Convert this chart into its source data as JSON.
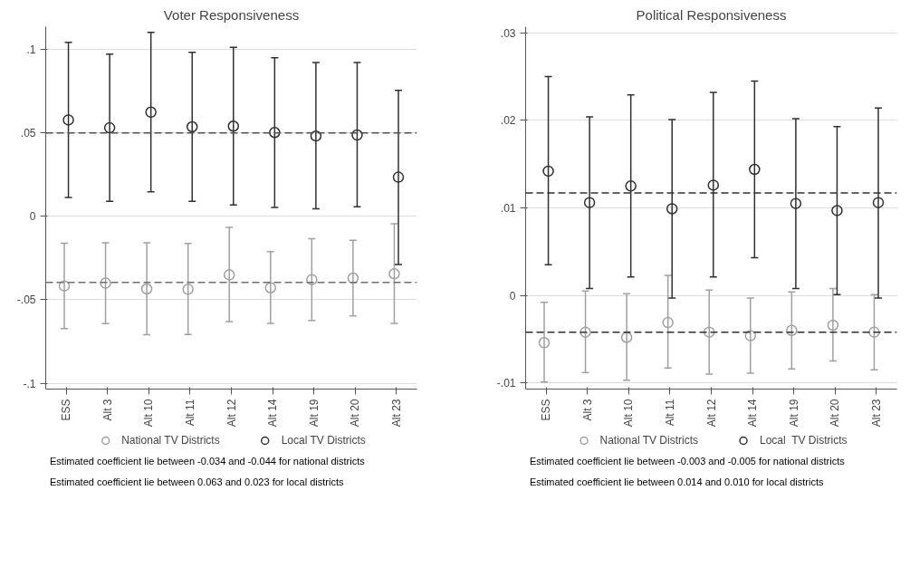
{
  "chart_data": [
    {
      "type": "scatter",
      "title": "Voter Responsiveness",
      "categories": [
        "ESS",
        "Alt 3",
        "Alt 10",
        "Alt 11",
        "Alt 12",
        "Alt 14",
        "Alt 19",
        "Alt 20",
        "Alt 23"
      ],
      "series": [
        {
          "name": "National TV Districts",
          "color": "#a0a0a0",
          "values": [
            -0.0417,
            -0.04,
            -0.0435,
            -0.0437,
            -0.035,
            -0.0428,
            -0.0379,
            -0.037,
            -0.0344
          ],
          "errors": [
            [
              -0.0673,
              -0.0161
            ],
            [
              -0.0643,
              -0.0158
            ],
            [
              -0.0709,
              -0.0158
            ],
            [
              -0.0708,
              -0.0162
            ],
            [
              -0.0631,
              -0.0066
            ],
            [
              -0.0642,
              -0.0211
            ],
            [
              -0.0624,
              -0.0133
            ],
            [
              -0.0597,
              -0.0143
            ],
            [
              -0.0642,
              -0.0044
            ]
          ]
        },
        {
          "name": "Local TV Districts",
          "color": "#303030",
          "values": [
            0.0578,
            0.0531,
            0.0625,
            0.0537,
            0.0541,
            0.0503,
            0.0482,
            0.0488,
            0.0235
          ],
          "errors": [
            [
              0.0114,
              0.1044
            ],
            [
              0.009,
              0.0973
            ],
            [
              0.0147,
              0.1103
            ],
            [
              0.009,
              0.0984
            ],
            [
              0.0069,
              0.1013
            ],
            [
              0.0054,
              0.0951
            ],
            [
              0.0046,
              0.0922
            ],
            [
              0.0058,
              0.0922
            ],
            [
              -0.0288,
              0.0755
            ]
          ]
        }
      ],
      "ylim": [
        -0.1035,
        0.1137
      ],
      "yticks": [
        {
          "value": -0.1,
          "label": "-.1"
        },
        {
          "value": -0.05,
          "label": "-.05"
        },
        {
          "value": 0,
          "label": "0"
        },
        {
          "value": 0.05,
          "label": ".05"
        },
        {
          "value": 0.1,
          "label": ".1"
        }
      ],
      "ref_lines": [
        {
          "axis": "y",
          "value": 0.05,
          "color": "#505050",
          "line_style": "dashed"
        },
        {
          "axis": "y",
          "value": -0.0395,
          "color": "#707070",
          "line_style": "dashed"
        }
      ],
      "grid": "y",
      "legend": "bottom",
      "marker": "circle",
      "annotations": [
        "Estimated coefficient lie between -0.034 and -0.044 for national districts",
        "Estimated coefficient lie between 0.063 and 0.023 for local districts"
      ]
    },
    {
      "type": "scatter",
      "title": "Political Responsiveness",
      "categories": [
        "ESS",
        "Alt 3",
        "Alt 10",
        "Alt 11",
        "Alt 12",
        "Alt 14",
        "Alt 19",
        "Alt 20",
        "Alt 23"
      ],
      "series": [
        {
          "name": "National TV Districts",
          "color": "#a0a0a0",
          "values": [
            -0.0054,
            -0.0042,
            -0.0048,
            -0.0031,
            -0.0042,
            -0.0046,
            -0.004,
            -0.0034,
            -0.0042
          ],
          "errors": [
            [
              -0.0099,
              -0.0008
            ],
            [
              -0.0088,
              0.0005
            ],
            [
              -0.0097,
              0.0002
            ],
            [
              -0.0083,
              0.0023
            ],
            [
              -0.009,
              0.0006
            ],
            [
              -0.0089,
              -0.0003
            ],
            [
              -0.0084,
              0.0004
            ],
            [
              -0.0075,
              0.0008
            ],
            [
              -0.0085,
              0.0001
            ]
          ]
        },
        {
          "name": "Local  TV Districts",
          "color": "#303030",
          "values": [
            0.0142,
            0.0106,
            0.0125,
            0.0099,
            0.0126,
            0.0144,
            0.0105,
            0.0097,
            0.0106
          ],
          "errors": [
            [
              0.0035,
              0.025
            ],
            [
              0.0008,
              0.0204
            ],
            [
              0.0021,
              0.0229
            ],
            [
              -0.0003,
              0.0201
            ],
            [
              0.0021,
              0.0232
            ],
            [
              0.0043,
              0.0245
            ],
            [
              0.0008,
              0.0202
            ],
            [
              0.0001,
              0.0193
            ],
            [
              -0.0003,
              0.0214
            ]
          ]
        }
      ],
      "ylim": [
        -0.0107,
        0.0307
      ],
      "yticks": [
        {
          "value": -0.01,
          "label": "-.01"
        },
        {
          "value": 0,
          "label": "0"
        },
        {
          "value": 0.01,
          "label": ".01"
        },
        {
          "value": 0.02,
          "label": ".02"
        },
        {
          "value": 0.03,
          "label": ".03"
        }
      ],
      "ref_lines": [
        {
          "axis": "y",
          "value": 0.0117,
          "color": "#303030",
          "line_style": "dashed"
        },
        {
          "axis": "y",
          "value": -0.0042,
          "color": "#303030",
          "line_style": "dashed"
        }
      ],
      "grid": "y",
      "legend": "bottom",
      "marker": "circle",
      "annotations": [
        "Estimated coefficient lie between -0.003 and -0.005 for national districts",
        "Estimated coefficient lie between 0.014 and 0.010 for local districts"
      ]
    }
  ]
}
